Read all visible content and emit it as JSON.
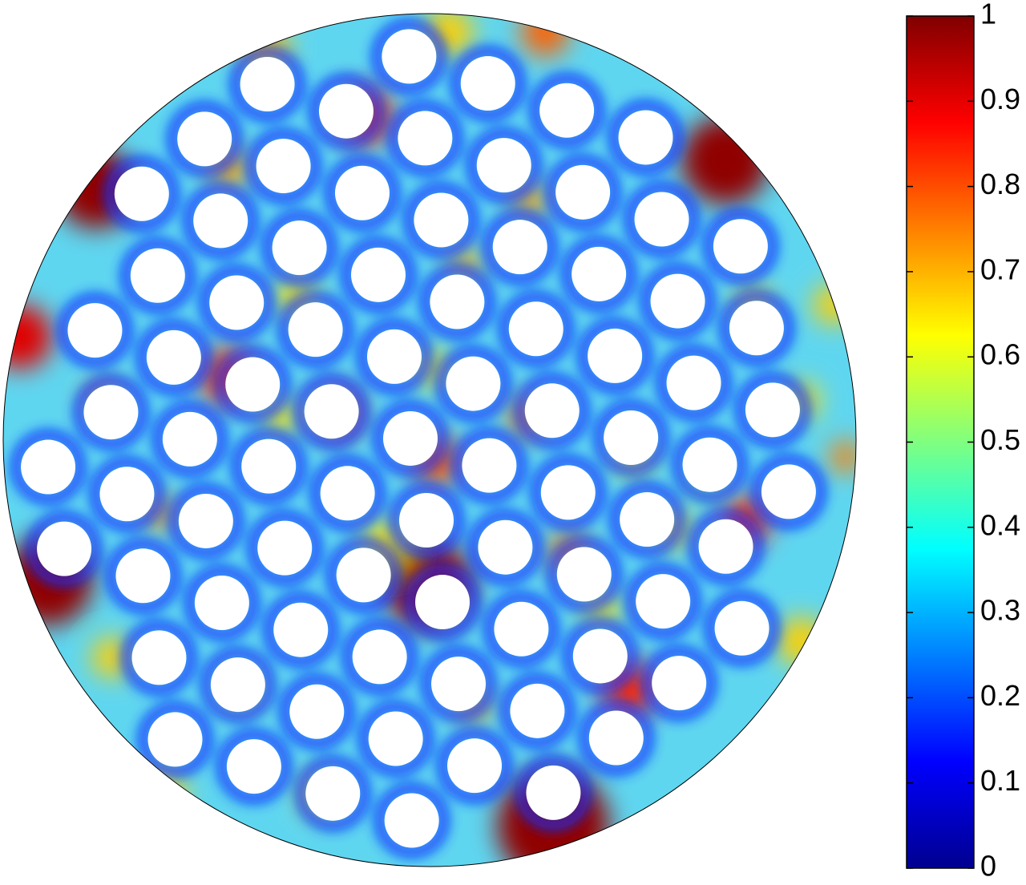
{
  "chart_data": {
    "type": "field",
    "clim": [
      0,
      1
    ],
    "cticks": [
      0,
      0.1,
      0.2,
      0.3,
      0.4,
      0.5,
      0.6,
      0.7,
      0.8,
      0.9,
      1
    ],
    "colormap": "jet"
  }
}
